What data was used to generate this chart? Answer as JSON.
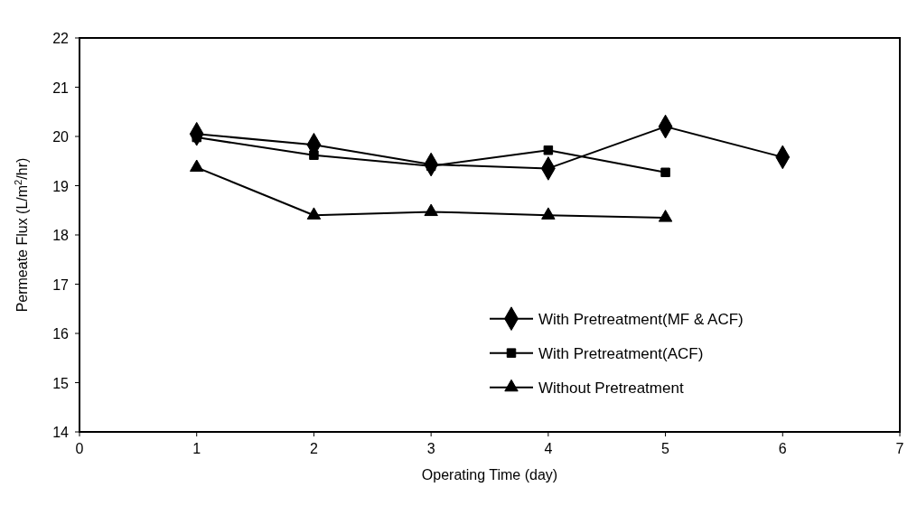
{
  "chart_data": {
    "type": "line",
    "xlabel": "Operating Time (day)",
    "ylabel": "Permeate Flux (L/m$^{2}$/hr)",
    "xlim": [
      0,
      7
    ],
    "xticks": [
      0,
      1,
      2,
      3,
      4,
      5,
      6,
      7
    ],
    "ylim": [
      14,
      22
    ],
    "yticks": [
      14,
      15,
      16,
      17,
      18,
      19,
      20,
      21,
      22
    ],
    "grid": false,
    "legend": "bottom right",
    "series": [
      {
        "name": "With Pretreatment(MF & ACF)",
        "color": "#000000",
        "marker": "diamond",
        "x": [
          1,
          2,
          3,
          4,
          5,
          6
        ],
        "values": [
          20.05,
          19.83,
          19.43,
          19.35,
          20.2,
          19.58
        ]
      },
      {
        "name": "With Pretreatment(ACF)",
        "color": "#000000",
        "marker": "square",
        "x": [
          1,
          2,
          3,
          4,
          5
        ],
        "values": [
          19.98,
          19.62,
          19.4,
          19.72,
          19.27
        ]
      },
      {
        "name": "Without Pretreatment",
        "color": "#000000",
        "marker": "triangle",
        "x": [
          1,
          2,
          3,
          4,
          5
        ],
        "values": [
          19.37,
          18.4,
          18.47,
          18.4,
          18.35
        ]
      }
    ]
  }
}
